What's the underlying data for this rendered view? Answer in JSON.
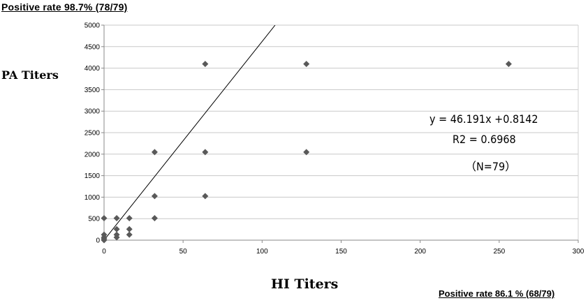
{
  "chart_data": {
    "type": "scatter",
    "title": "",
    "notes": {
      "top": "Positive rate 98.7% (78/79)",
      "bottom": "Positive rate 86.1 % (68/79)"
    },
    "xlabel": "HI Titers",
    "ylabel": "PA Titers",
    "xlim": [
      0,
      300
    ],
    "ylim": [
      0,
      5000
    ],
    "xticks": [
      0,
      50,
      100,
      150,
      200,
      250,
      300
    ],
    "yticks": [
      0,
      500,
      1000,
      1500,
      2000,
      2500,
      3000,
      3500,
      4000,
      4500,
      5000
    ],
    "grid": {
      "horizontal": true,
      "vertical": false
    },
    "marker_color": "#595959",
    "points": [
      {
        "x": 0,
        "y": 0
      },
      {
        "x": 0,
        "y": 32
      },
      {
        "x": 0,
        "y": 64
      },
      {
        "x": 0,
        "y": 128
      },
      {
        "x": 0,
        "y": 512
      },
      {
        "x": 8,
        "y": 64
      },
      {
        "x": 8,
        "y": 128
      },
      {
        "x": 8,
        "y": 256
      },
      {
        "x": 8,
        "y": 512
      },
      {
        "x": 16,
        "y": 128
      },
      {
        "x": 16,
        "y": 256
      },
      {
        "x": 16,
        "y": 512
      },
      {
        "x": 32,
        "y": 512
      },
      {
        "x": 32,
        "y": 1024
      },
      {
        "x": 32,
        "y": 2048
      },
      {
        "x": 64,
        "y": 1024
      },
      {
        "x": 64,
        "y": 2048
      },
      {
        "x": 64,
        "y": 4096
      },
      {
        "x": 128,
        "y": 2048
      },
      {
        "x": 128,
        "y": 4096
      },
      {
        "x": 256,
        "y": 4096
      }
    ],
    "trendline": {
      "equation": "y = 46.191x +0.8142",
      "r2_text": "R2 = 0.6968",
      "n_text": "（N=79）",
      "slope": 46.191,
      "intercept": 0.8142,
      "color": "#000000"
    }
  }
}
